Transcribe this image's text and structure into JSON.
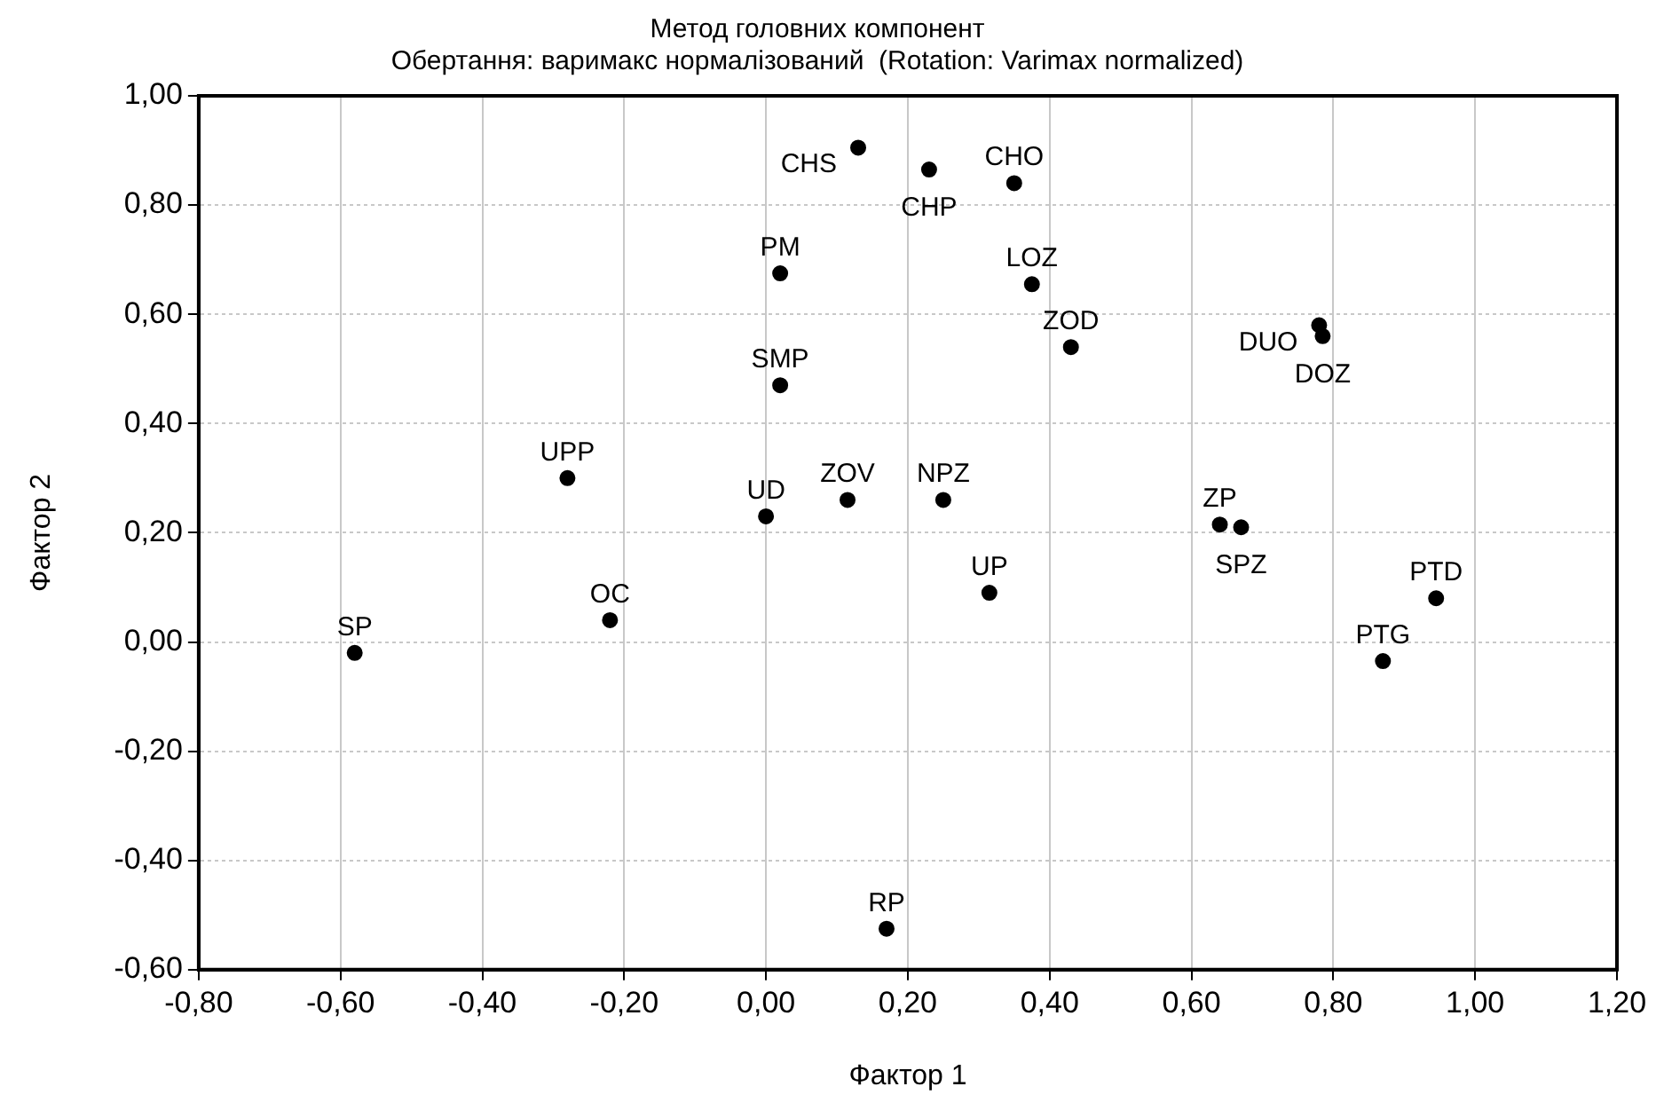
{
  "chart_data": {
    "type": "scatter",
    "title": "Метод головних компонент",
    "subtitle": "Обертання: варимакс нормалізований  (Rotation: Varimax normalized)",
    "xlabel": "Фактор 1",
    "ylabel": "Фактор 2",
    "series": [
      {
        "color": "#000000",
        "x": [
          -0.58,
          -0.22,
          -0.28,
          0.0,
          0.115,
          0.25,
          0.02,
          0.02,
          0.13,
          0.23,
          0.35,
          0.375,
          0.43,
          0.78,
          0.785,
          0.64,
          0.67,
          0.315,
          0.945,
          0.87,
          0.17
        ],
        "values": [
          -0.02,
          0.04,
          0.3,
          0.23,
          0.26,
          0.26,
          0.47,
          0.675,
          0.905,
          0.865,
          0.84,
          0.655,
          0.54,
          0.58,
          0.56,
          0.215,
          0.21,
          0.09,
          0.08,
          -0.035,
          -0.525
        ]
      }
    ],
    "annotations": [
      {
        "text": "SP",
        "x": -0.58,
        "y": -0.02
      },
      {
        "text": "OC",
        "x": -0.22,
        "y": 0.04
      },
      {
        "text": "UPP",
        "x": -0.28,
        "y": 0.3
      },
      {
        "text": "UD",
        "x": 0.0,
        "y": 0.23
      },
      {
        "text": "ZOV",
        "x": 0.115,
        "y": 0.26
      },
      {
        "text": "NPZ",
        "x": 0.25,
        "y": 0.26
      },
      {
        "text": "SMP",
        "x": 0.02,
        "y": 0.47
      },
      {
        "text": "PM",
        "x": 0.02,
        "y": 0.675
      },
      {
        "text": "CHS",
        "x": 0.13,
        "y": 0.905
      },
      {
        "text": "CHP",
        "x": 0.23,
        "y": 0.865
      },
      {
        "text": "CHO",
        "x": 0.35,
        "y": 0.84
      },
      {
        "text": "LOZ",
        "x": 0.375,
        "y": 0.655
      },
      {
        "text": "ZOD",
        "x": 0.43,
        "y": 0.54
      },
      {
        "text": "DUO",
        "x": 0.78,
        "y": 0.58
      },
      {
        "text": "DOZ",
        "x": 0.785,
        "y": 0.56
      },
      {
        "text": "ZP",
        "x": 0.64,
        "y": 0.215
      },
      {
        "text": "SPZ",
        "x": 0.67,
        "y": 0.21
      },
      {
        "text": "UP",
        "x": 0.315,
        "y": 0.09
      },
      {
        "text": "PTD",
        "x": 0.945,
        "y": 0.08
      },
      {
        "text": "PTG",
        "x": 0.87,
        "y": -0.035
      },
      {
        "text": "RP",
        "x": 0.17,
        "y": -0.525
      }
    ],
    "xlim": [
      -0.8,
      1.2
    ],
    "xticks": [
      {
        "value": -0.8,
        "label": "-0,80"
      },
      {
        "value": -0.6,
        "label": "-0,60"
      },
      {
        "value": -0.4,
        "label": "-0,40"
      },
      {
        "value": -0.2,
        "label": "-0,20"
      },
      {
        "value": 0,
        "label": "0,00"
      },
      {
        "value": 0.2,
        "label": "0,20"
      },
      {
        "value": 0.4,
        "label": "0,40"
      },
      {
        "value": 0.6,
        "label": "0,60"
      },
      {
        "value": 0.8,
        "label": "0,80"
      },
      {
        "value": 1.0,
        "label": "1,00"
      },
      {
        "value": 1.2,
        "label": "1,20"
      }
    ],
    "ylim": [
      -0.6,
      1.0
    ],
    "yticks": [
      {
        "value": -0.6,
        "label": "-0,60"
      },
      {
        "value": -0.4,
        "label": "-0,40"
      },
      {
        "value": -0.2,
        "label": "-0,20"
      },
      {
        "value": 0,
        "label": "0,00"
      },
      {
        "value": 0.2,
        "label": "0,20"
      },
      {
        "value": 0.4,
        "label": "0,40"
      },
      {
        "value": 0.6,
        "label": "0,60"
      },
      {
        "value": 0.8,
        "label": "0,80"
      },
      {
        "value": 1.0,
        "label": "1,00"
      }
    ],
    "grid": true,
    "legend": false,
    "marker": "circle"
  }
}
